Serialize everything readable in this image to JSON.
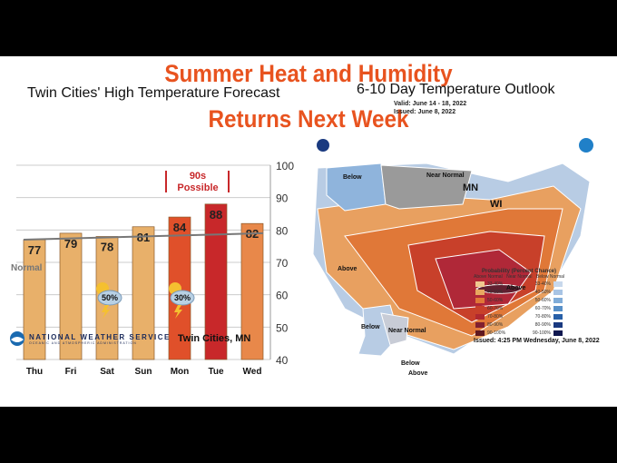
{
  "title_lines": [
    "Summer Heat and Humidity",
    "Returns Next Week"
  ],
  "chart_data": {
    "type": "bar",
    "title": "Twin Cities' High Temperature Forecast",
    "categories": [
      "Thu",
      "Fri",
      "Sat",
      "Sun",
      "Mon",
      "Tue",
      "Wed"
    ],
    "values": [
      77,
      79,
      78,
      81,
      84,
      88,
      82
    ],
    "bar_colors": [
      "#e8b06a",
      "#e8b06a",
      "#e8b06a",
      "#e8b06a",
      "#e0502a",
      "#c8282a",
      "#e8884a"
    ],
    "normal_line": {
      "label": "Normal",
      "start": 77,
      "end": 79
    },
    "ylim": [
      40,
      100
    ],
    "yticks": [
      40,
      50,
      60,
      70,
      80,
      90,
      100
    ],
    "annotations": [
      {
        "text": "90s Possible",
        "span": [
          "Mon",
          "Tue"
        ]
      }
    ],
    "storm_chances": [
      {
        "day": "Sat",
        "text": "50%"
      },
      {
        "day": "Mon",
        "text": "30%"
      }
    ]
  },
  "map": {
    "title": "6-10 Day Temperature Outlook",
    "valid": "Valid:  June 14 - 18, 2022",
    "issued_short": "Issued:  June 8, 2022",
    "labels": [
      "Below",
      "Near Normal",
      "MN",
      "WI",
      "Above",
      "Above",
      "Below",
      "Near Normal",
      "Below",
      "Above"
    ],
    "legend_title": "Probability (Percent Chance)",
    "legend_above": "Above Normal",
    "legend_below": "Below Normal",
    "legend_near": "Near Normal",
    "ranges": [
      "33-40%",
      "40-50%",
      "50-60%",
      "60-70%",
      "70-80%",
      "80-90%",
      "90-100%"
    ],
    "above_colors": [
      "#f0c890",
      "#e8a860",
      "#e07838",
      "#c8402a",
      "#b02830",
      "#802030",
      "#601820"
    ],
    "below_colors": [
      "#c8d8ec",
      "#a8c4e4",
      "#80acd8",
      "#5890c8",
      "#2860a8",
      "#1a3a80",
      "#101850"
    ],
    "issued": "Issued: 4:25 PM Wednesday, June 8, 2022"
  },
  "footer": {
    "org": "NATIONAL WEATHER SERVICE",
    "org_sub": "OCEANIC AND ATMOSPHERIC ADMINISTRATION",
    "city": "Twin Cities, MN"
  }
}
